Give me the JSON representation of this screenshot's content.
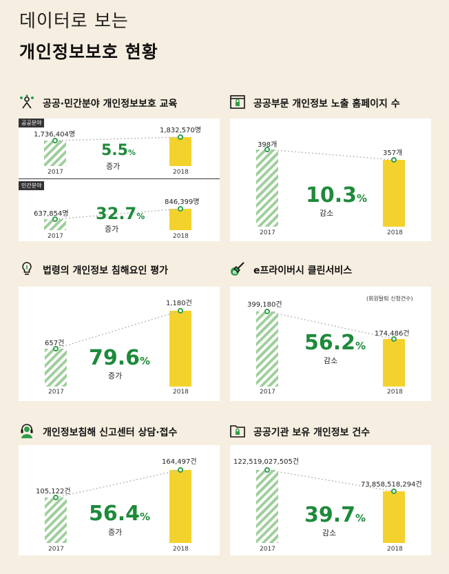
{
  "header": {
    "subtitle": "데이터로 보는",
    "title": "개인정보보호 현황"
  },
  "sections": {
    "education": {
      "title": "공공·민간분야 개인정보보호 교육"
    },
    "exposure": {
      "title": "공공부문 개인정보 노출 홈페이지 수"
    },
    "law": {
      "title": "법령의 개인정보 침해요인 평가"
    },
    "privacy_clean": {
      "title": "e프라이버시 클린서비스",
      "note": "(회원탈퇴 신청건수)"
    },
    "report": {
      "title": "개인정보침해 신고센터 상담·접수"
    },
    "holdings": {
      "title": "공공기관 보유 개인정보 건수"
    }
  },
  "labels": {
    "y1": "2017",
    "y2": "2018",
    "public_tag": "공공분야",
    "private_tag": "민간분야"
  },
  "texts": {
    "edu_pub_v1": "1,736,404명",
    "edu_pub_v2": "1,832,570명",
    "edu_pub_pct": "5.5",
    "edu_pub_dir": "증가",
    "edu_pri_v1": "637,854명",
    "edu_pri_v2": "846,399명",
    "edu_pri_pct": "32.7",
    "edu_pri_dir": "증가",
    "exp_v1": "398개",
    "exp_v2": "357개",
    "exp_pct": "10.3",
    "exp_dir": "감소",
    "law_v1": "657건",
    "law_v2": "1,180건",
    "law_pct": "79.6",
    "law_dir": "증가",
    "pc_v1": "399,180건",
    "pc_v2": "174,486건",
    "pc_pct": "56.2",
    "pc_dir": "감소",
    "rep_v1": "105,122건",
    "rep_v2": "164,497건",
    "rep_pct": "56.4",
    "rep_dir": "증가",
    "hold_v1": "122,519,027,505건",
    "hold_v2": "73,858,518,294건",
    "hold_pct": "39.7",
    "hold_dir": "감소",
    "pct_sym": "%"
  },
  "colors": {
    "green": "#1e8a3a",
    "hatch": "#9fcf9c",
    "yellow": "#f4d22d",
    "bg": "#f6eee0"
  },
  "chart_data": [
    {
      "type": "bar",
      "title": "공공·민간분야 개인정보보호 교육",
      "subtitle": "공공분야",
      "categories": [
        "2017",
        "2018"
      ],
      "values": [
        1736404,
        1832570
      ],
      "unit": "명",
      "change_pct": 5.5,
      "change": "증가"
    },
    {
      "type": "bar",
      "title": "공공·민간분야 개인정보보호 교육",
      "subtitle": "민간분야",
      "categories": [
        "2017",
        "2018"
      ],
      "values": [
        637854,
        846399
      ],
      "unit": "명",
      "change_pct": 32.7,
      "change": "증가"
    },
    {
      "type": "bar",
      "title": "공공부문 개인정보 노출 홈페이지 수",
      "categories": [
        "2017",
        "2018"
      ],
      "values": [
        398,
        357
      ],
      "unit": "개",
      "change_pct": 10.3,
      "change": "감소"
    },
    {
      "type": "bar",
      "title": "법령의 개인정보 침해요인 평가",
      "categories": [
        "2017",
        "2018"
      ],
      "values": [
        657,
        1180
      ],
      "unit": "건",
      "change_pct": 79.6,
      "change": "증가"
    },
    {
      "type": "bar",
      "title": "e프라이버시 클린서비스",
      "subtitle": "(회원탈퇴 신청건수)",
      "categories": [
        "2017",
        "2018"
      ],
      "values": [
        399180,
        174486
      ],
      "unit": "건",
      "change_pct": 56.2,
      "change": "감소"
    },
    {
      "type": "bar",
      "title": "개인정보침해 신고센터 상담·접수",
      "categories": [
        "2017",
        "2018"
      ],
      "values": [
        105122,
        164497
      ],
      "unit": "건",
      "change_pct": 56.4,
      "change": "증가"
    },
    {
      "type": "bar",
      "title": "공공기관 보유 개인정보 건수",
      "categories": [
        "2017",
        "2018"
      ],
      "values": [
        122519027505,
        73858518294
      ],
      "unit": "건",
      "change_pct": 39.7,
      "change": "감소"
    }
  ]
}
